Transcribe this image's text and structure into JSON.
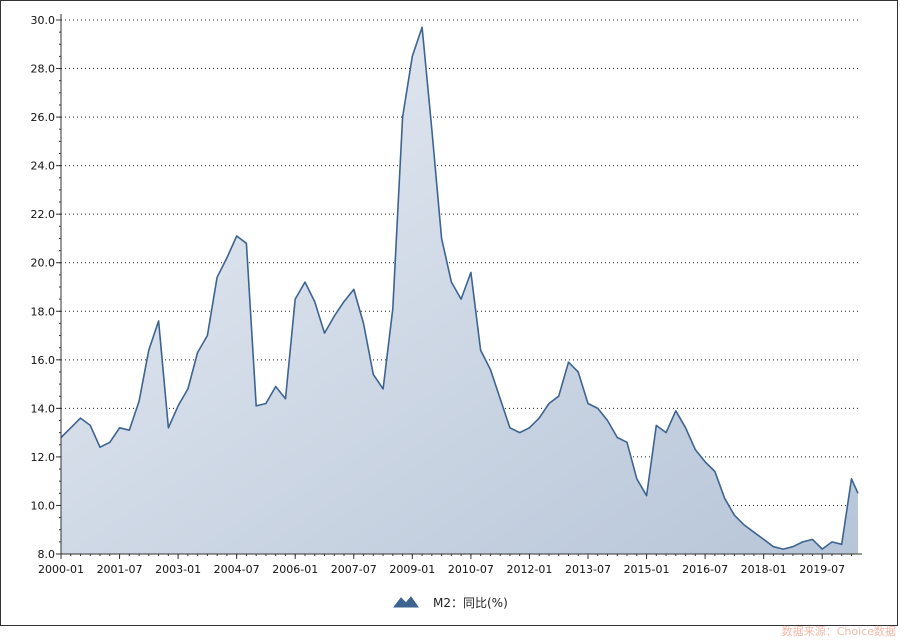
{
  "chart_data": {
    "type": "area",
    "title": "",
    "xlabel": "",
    "ylabel": "",
    "ylim": [
      8.0,
      30.0
    ],
    "y_ticks": [
      "8.0",
      "10.0",
      "12.0",
      "14.0",
      "16.0",
      "18.0",
      "20.0",
      "22.0",
      "24.0",
      "26.0",
      "28.0",
      "30.0"
    ],
    "x_ticks": [
      "2000-01",
      "2001-07",
      "2003-01",
      "2004-07",
      "2006-01",
      "2007-07",
      "2009-01",
      "2010-07",
      "2012-01",
      "2013-07",
      "2015-01",
      "2016-07",
      "2018-01",
      "2019-07"
    ],
    "grid": "horizontal-dotted",
    "legend_position": "bottom-center",
    "series": [
      {
        "name": "M2：同比(%)",
        "color": "#3d6491",
        "fill_top": "#e9edf4",
        "fill_bottom": "#b6c5d8",
        "x": [
          "2000-01",
          "2000-04",
          "2000-07",
          "2000-10",
          "2001-01",
          "2001-04",
          "2001-07",
          "2001-10",
          "2002-01",
          "2002-04",
          "2002-07",
          "2002-10",
          "2003-01",
          "2003-04",
          "2003-07",
          "2003-10",
          "2004-01",
          "2004-04",
          "2004-07",
          "2004-10",
          "2005-01",
          "2005-04",
          "2005-07",
          "2005-10",
          "2006-01",
          "2006-04",
          "2006-07",
          "2006-10",
          "2007-01",
          "2007-04",
          "2007-07",
          "2007-10",
          "2008-01",
          "2008-04",
          "2008-07",
          "2008-10",
          "2009-01",
          "2009-04",
          "2009-07",
          "2009-10",
          "2010-01",
          "2010-04",
          "2010-07",
          "2010-10",
          "2011-01",
          "2011-04",
          "2011-07",
          "2011-10",
          "2012-01",
          "2012-04",
          "2012-07",
          "2012-10",
          "2013-01",
          "2013-04",
          "2013-07",
          "2013-10",
          "2014-01",
          "2014-04",
          "2014-07",
          "2014-10",
          "2015-01",
          "2015-04",
          "2015-07",
          "2015-10",
          "2016-01",
          "2016-04",
          "2016-07",
          "2016-10",
          "2017-01",
          "2017-04",
          "2017-07",
          "2017-10",
          "2018-01",
          "2018-04",
          "2018-07",
          "2018-10",
          "2019-01",
          "2019-04",
          "2019-07",
          "2019-10",
          "2020-01",
          "2020-04",
          "2020-06"
        ],
        "values": [
          12.8,
          13.2,
          13.6,
          13.3,
          12.4,
          12.6,
          13.2,
          13.1,
          14.3,
          16.4,
          17.6,
          13.2,
          14.1,
          14.8,
          16.3,
          17.0,
          19.4,
          20.2,
          21.1,
          20.8,
          14.1,
          14.2,
          14.9,
          14.4,
          18.5,
          19.2,
          18.4,
          17.1,
          17.8,
          18.4,
          18.9,
          17.5,
          15.4,
          14.8,
          18.1,
          26.0,
          28.5,
          29.7,
          25.5,
          21.0,
          19.2,
          18.5,
          19.6,
          16.4,
          15.6,
          14.4,
          13.2,
          13.0,
          13.2,
          13.6,
          14.2,
          14.5,
          15.9,
          15.5,
          14.2,
          14.0,
          13.5,
          12.8,
          12.6,
          11.1,
          10.4,
          13.3,
          13.0,
          13.9,
          13.2,
          12.3,
          11.8,
          11.4,
          10.3,
          9.6,
          9.2,
          8.9,
          8.6,
          8.3,
          8.2,
          8.3,
          8.5,
          8.6,
          8.2,
          8.5,
          8.4,
          11.1,
          10.5
        ]
      }
    ]
  },
  "source_text": "数据来源：Choice数据"
}
